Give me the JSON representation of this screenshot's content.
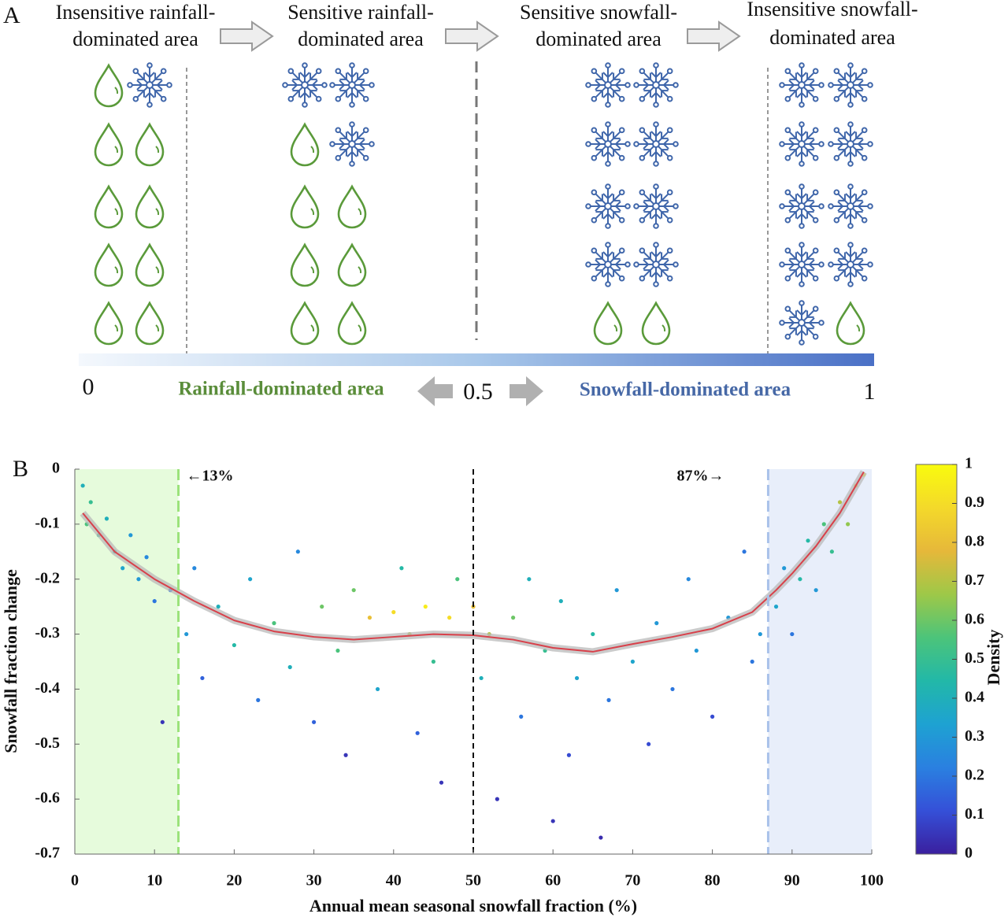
{
  "panel_a": {
    "label": "A",
    "stages": [
      {
        "lines": [
          "Insensitive rainfall-",
          "dominated area"
        ]
      },
      {
        "lines": [
          "Sensitive rainfall-",
          "dominated area"
        ]
      },
      {
        "lines": [
          "Sensitive snowfall-",
          "dominated area"
        ]
      },
      {
        "lines": [
          "Insensitive snowfall-",
          "dominated area"
        ]
      }
    ],
    "scale": {
      "min_label": "0",
      "left_label": "Rainfall-dominated area",
      "mid_label": "0.5",
      "right_label": "Snowfall-dominated area",
      "max_label": "1"
    }
  },
  "chart_data": {
    "type": "scatter",
    "panel_label": "B",
    "x_label": "Annual mean seasonal snowfall fraction (%)",
    "y_label": "Snowfall fraction change",
    "colorbar_label": "Density",
    "xlim": [
      0,
      100
    ],
    "ylim": [
      -0.7,
      0
    ],
    "xticks": [
      0,
      10,
      20,
      30,
      40,
      50,
      60,
      70,
      80,
      90,
      100
    ],
    "yticks": [
      0,
      -0.1,
      -0.2,
      -0.3,
      -0.4,
      -0.5,
      -0.6,
      -0.7
    ],
    "clim": [
      0,
      1
    ],
    "cticks": [
      0,
      0.1,
      0.2,
      0.3,
      0.4,
      0.5,
      0.6,
      0.7,
      0.8,
      0.9,
      1
    ],
    "colormap": [
      "#3a1f9e",
      "#3550d8",
      "#2a80e0",
      "#1ea2d2",
      "#22b8a8",
      "#4cc47a",
      "#9ec848",
      "#e6b83a",
      "#f4d92a",
      "#f9fb0e"
    ],
    "regions": [
      {
        "xlim": [
          0,
          13
        ],
        "color": "#e6fbdc"
      },
      {
        "xlim": [
          87,
          100
        ],
        "color": "#e8eefa"
      }
    ],
    "vlines": [
      {
        "x": 13,
        "color": "#9be27a"
      },
      {
        "x": 50,
        "color": "#111111"
      },
      {
        "x": 87,
        "color": "#a9c2ea"
      }
    ],
    "annotations": [
      "←13%",
      "87%→"
    ],
    "scatter": {
      "x": [
        1,
        1.5,
        2,
        3,
        4,
        5,
        6,
        7,
        8,
        9,
        10,
        11,
        12,
        14,
        15,
        16,
        18,
        20,
        22,
        23,
        25,
        27,
        28,
        30,
        31,
        33,
        34,
        35,
        37,
        38,
        40,
        41,
        42,
        43,
        44,
        45,
        46,
        47,
        48,
        50,
        51,
        52,
        53,
        55,
        56,
        57,
        59,
        60,
        61,
        62,
        63,
        65,
        66,
        67,
        68,
        70,
        72,
        73,
        75,
        77,
        78,
        80,
        82,
        84,
        85,
        86,
        88,
        89,
        90,
        91,
        92,
        93,
        94,
        95,
        96,
        97,
        98,
        99
      ],
      "values": [
        -0.03,
        -0.1,
        -0.06,
        -0.12,
        -0.09,
        -0.15,
        -0.18,
        -0.12,
        -0.2,
        -0.16,
        -0.24,
        -0.46,
        -0.22,
        -0.3,
        -0.18,
        -0.38,
        -0.25,
        -0.32,
        -0.2,
        -0.42,
        -0.28,
        -0.36,
        -0.15,
        -0.46,
        -0.25,
        -0.33,
        -0.52,
        -0.22,
        -0.27,
        -0.4,
        -0.26,
        -0.18,
        -0.3,
        -0.48,
        -0.25,
        -0.35,
        -0.57,
        -0.27,
        -0.2,
        -0.25,
        -0.38,
        -0.3,
        -0.6,
        -0.27,
        -0.45,
        -0.2,
        -0.33,
        -0.64,
        -0.24,
        -0.52,
        -0.38,
        -0.3,
        -0.67,
        -0.42,
        -0.22,
        -0.35,
        -0.5,
        -0.28,
        -0.4,
        -0.2,
        -0.33,
        -0.45,
        -0.27,
        -0.15,
        -0.35,
        -0.3,
        -0.25,
        -0.18,
        -0.3,
        -0.2,
        -0.13,
        -0.22,
        -0.1,
        -0.15,
        -0.06,
        -0.1,
        -0.03,
        -0.01
      ],
      "density": [
        0.4,
        0.55,
        0.5,
        0.5,
        0.4,
        0.45,
        0.35,
        0.3,
        0.3,
        0.25,
        0.2,
        0.05,
        0.2,
        0.3,
        0.25,
        0.15,
        0.4,
        0.45,
        0.35,
        0.2,
        0.55,
        0.4,
        0.25,
        0.15,
        0.6,
        0.55,
        0.05,
        0.6,
        0.8,
        0.35,
        0.9,
        0.45,
        0.7,
        0.15,
        0.95,
        0.5,
        0.05,
        0.9,
        0.55,
        0.8,
        0.4,
        0.7,
        0.05,
        0.6,
        0.2,
        0.4,
        0.5,
        0.05,
        0.4,
        0.1,
        0.35,
        0.45,
        0.03,
        0.2,
        0.3,
        0.35,
        0.1,
        0.3,
        0.2,
        0.25,
        0.3,
        0.1,
        0.3,
        0.2,
        0.2,
        0.3,
        0.35,
        0.3,
        0.2,
        0.45,
        0.45,
        0.3,
        0.55,
        0.5,
        0.7,
        0.65,
        0.85,
        0.95
      ]
    },
    "trend": {
      "color": "#d8404a",
      "x": [
        1,
        5,
        10,
        15,
        20,
        25,
        30,
        35,
        40,
        45,
        50,
        55,
        60,
        65,
        70,
        75,
        80,
        85,
        88,
        90,
        93,
        96,
        99
      ],
      "values": [
        -0.08,
        -0.15,
        -0.2,
        -0.24,
        -0.275,
        -0.295,
        -0.305,
        -0.31,
        -0.305,
        -0.3,
        -0.302,
        -0.31,
        -0.325,
        -0.332,
        -0.318,
        -0.305,
        -0.29,
        -0.26,
        -0.22,
        -0.19,
        -0.14,
        -0.08,
        -0.005
      ]
    }
  }
}
